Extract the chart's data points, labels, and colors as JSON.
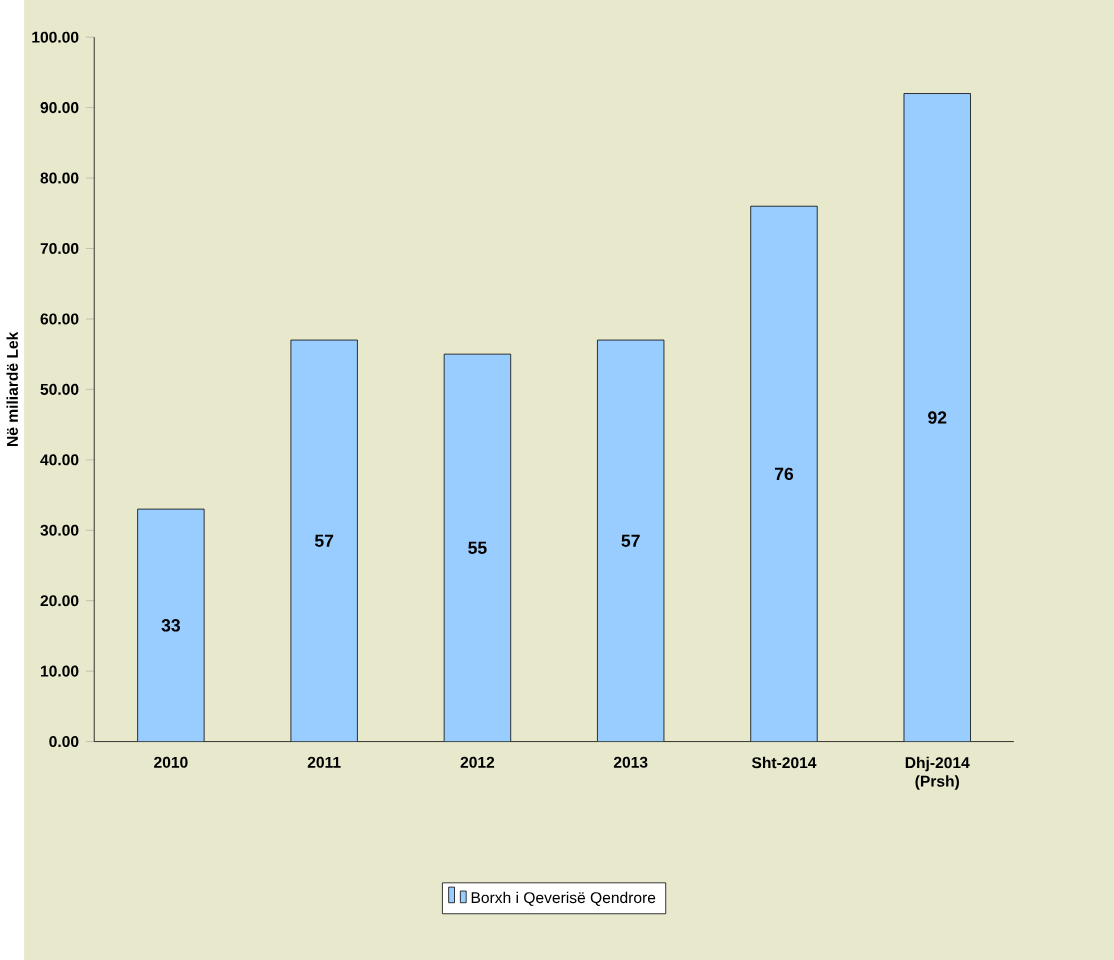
{
  "chart_data": {
    "type": "bar",
    "ylabel": "Në miliardë Lek",
    "categories": [
      "2010",
      "2011",
      "2012",
      "2013",
      "Sht-2014",
      "Dhj-2014 (Prsh)"
    ],
    "series": [
      {
        "name": "Borxh i Qeverisë Qendrore",
        "color": "#99ccff",
        "values": [
          33,
          57,
          55,
          57,
          76,
          92
        ]
      }
    ],
    "ylim": [
      0,
      100
    ],
    "yticks": [
      {
        "value": 0,
        "label": "0.00"
      },
      {
        "value": 10,
        "label": "10.00"
      },
      {
        "value": 20,
        "label": "20.00"
      },
      {
        "value": 30,
        "label": "30.00"
      },
      {
        "value": 40,
        "label": "40.00"
      },
      {
        "value": 50,
        "label": "50.00"
      },
      {
        "value": 60,
        "label": "60.00"
      },
      {
        "value": 70,
        "label": "70.00"
      },
      {
        "value": 80,
        "label": "80.00"
      },
      {
        "value": 90,
        "label": "90.00"
      },
      {
        "value": 100,
        "label": "100.00"
      }
    ],
    "data_labels": true,
    "legend": "bottom",
    "grid": false
  }
}
